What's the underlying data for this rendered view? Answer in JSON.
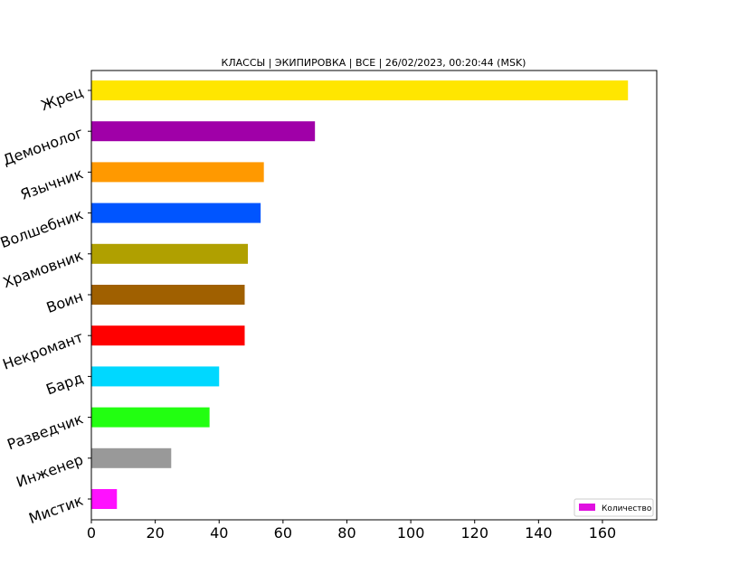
{
  "chart_data": {
    "type": "bar",
    "orientation": "horizontal",
    "title": "КЛАССЫ | ЭКИПИРОВКА | ВСЕ | 26/02/2023, 00:20:44 (MSK)",
    "xlabel": "",
    "ylabel": "",
    "categories": [
      "Жрец",
      "Демонолог",
      "Язычник",
      "Волшебник",
      "Храмовник",
      "Воин",
      "Некромант",
      "Бард",
      "Разведчик",
      "Инженер",
      "Мистик"
    ],
    "values": [
      168,
      70,
      54,
      53,
      49,
      48,
      48,
      40,
      37,
      25,
      8
    ],
    "colors": [
      "#ffe600",
      "#a000a8",
      "#ff9900",
      "#0055ff",
      "#b0a000",
      "#a06000",
      "#ff0000",
      "#00d8ff",
      "#22ff11",
      "#999999",
      "#ff11ff"
    ],
    "xlim": [
      0,
      177
    ],
    "xticks": [
      0,
      20,
      40,
      60,
      80,
      100,
      120,
      140,
      160
    ],
    "grid": false,
    "legend": {
      "label": "Количество",
      "color": "#e010e0",
      "position": "lower-right"
    }
  }
}
